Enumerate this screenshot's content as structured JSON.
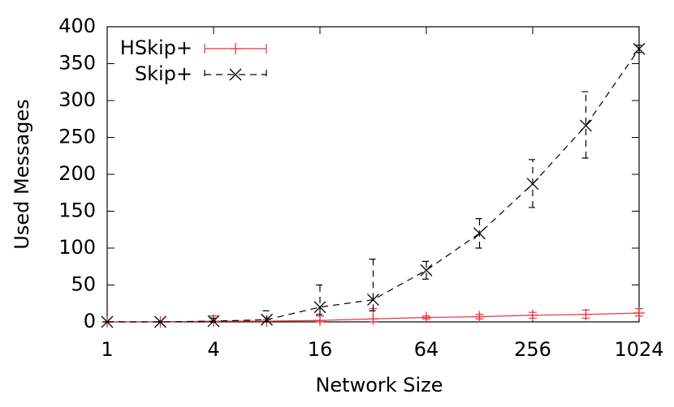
{
  "chart_data": {
    "type": "line",
    "x_label": "Network Size",
    "y_label": "Used Messages",
    "x": [
      1,
      2,
      4,
      8,
      16,
      32,
      64,
      128,
      256,
      512,
      1024
    ],
    "xlim": [
      1,
      1024
    ],
    "xticks": [
      1,
      4,
      16,
      64,
      256,
      1024
    ],
    "x_log_base": 2,
    "ylim": [
      0,
      400
    ],
    "yticks": [
      0,
      50,
      100,
      150,
      200,
      250,
      300,
      350,
      400
    ],
    "legend": "top-left",
    "series": [
      {
        "name": "HSkip+",
        "color": "#e8343a",
        "dashed": false,
        "marker": "plus",
        "values": [
          0,
          0,
          1,
          1,
          2,
          4,
          6,
          7,
          9,
          10,
          12
        ],
        "low": [
          0,
          0,
          0,
          0,
          0,
          0,
          4,
          4,
          5,
          5,
          8
        ],
        "high": [
          0,
          0,
          8,
          3,
          8,
          18,
          8,
          10,
          13,
          16,
          18
        ]
      },
      {
        "name": "Skip+",
        "color": "#000000",
        "dashed": true,
        "marker": "cross",
        "values": [
          0,
          0,
          1,
          3,
          20,
          30,
          70,
          120,
          187,
          266,
          370
        ],
        "low": [
          0,
          0,
          0,
          0,
          10,
          15,
          58,
          100,
          155,
          222,
          365
        ],
        "high": [
          0,
          0,
          5,
          15,
          50,
          85,
          82,
          140,
          220,
          312,
          375
        ]
      }
    ]
  }
}
